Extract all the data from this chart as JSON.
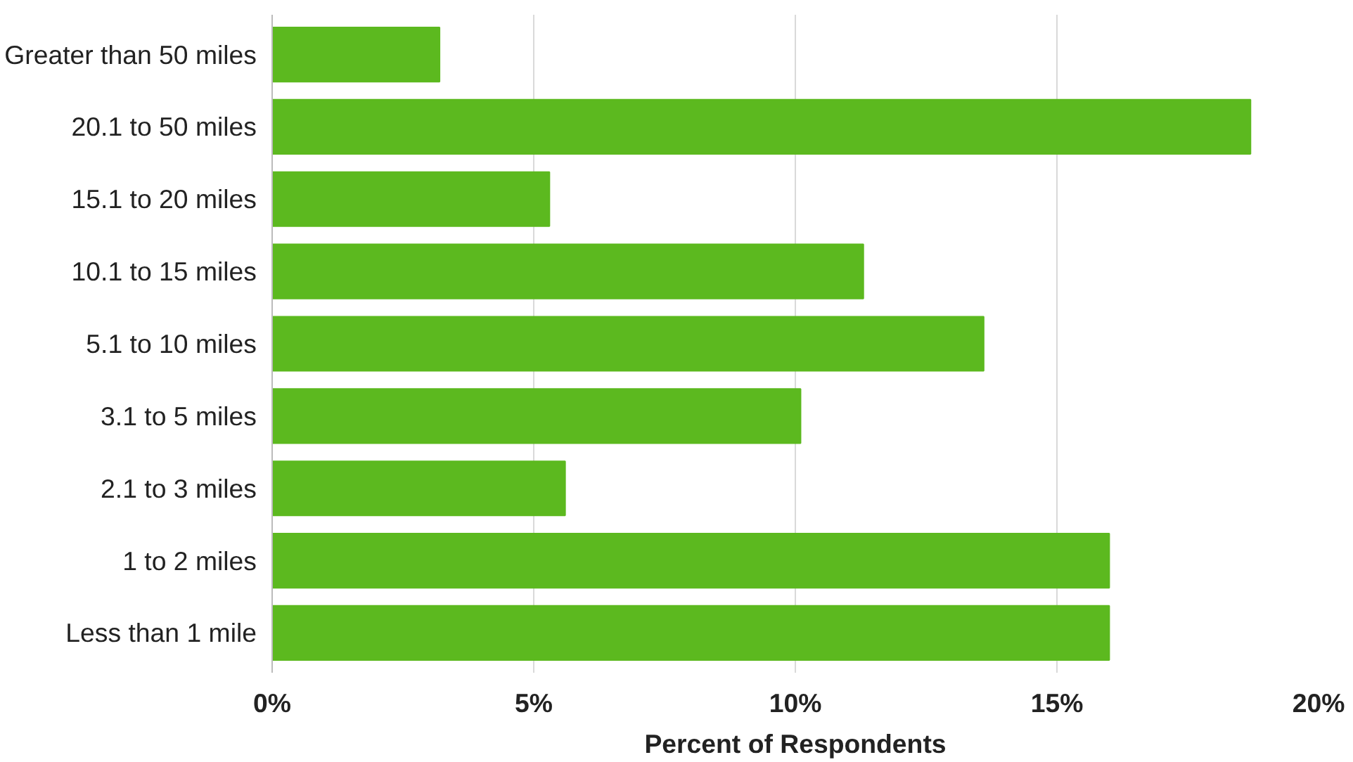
{
  "chart_data": {
    "type": "bar",
    "orientation": "horizontal",
    "xlabel": "Percent of Respondents",
    "categories": [
      "Greater than 50 miles",
      "20.1 to 50 miles",
      "15.1 to 20 miles",
      "10.1 to 15 miles",
      "5.1 to 10 miles",
      "3.1 to 5 miles",
      "2.1 to 3 miles",
      "1 to 2 miles",
      "Less than 1 mile"
    ],
    "values": [
      3.2,
      18.7,
      5.3,
      11.3,
      13.6,
      10.1,
      5.6,
      16.0,
      16.0
    ],
    "color": "#5cb91f",
    "xlim": [
      0,
      20
    ],
    "xticks": [
      {
        "value": 0,
        "label": "0%"
      },
      {
        "value": 5,
        "label": "5%"
      },
      {
        "value": 10,
        "label": "10%"
      },
      {
        "value": 15,
        "label": "15%"
      },
      {
        "value": 20,
        "label": "20%"
      }
    ],
    "grid": "x"
  }
}
